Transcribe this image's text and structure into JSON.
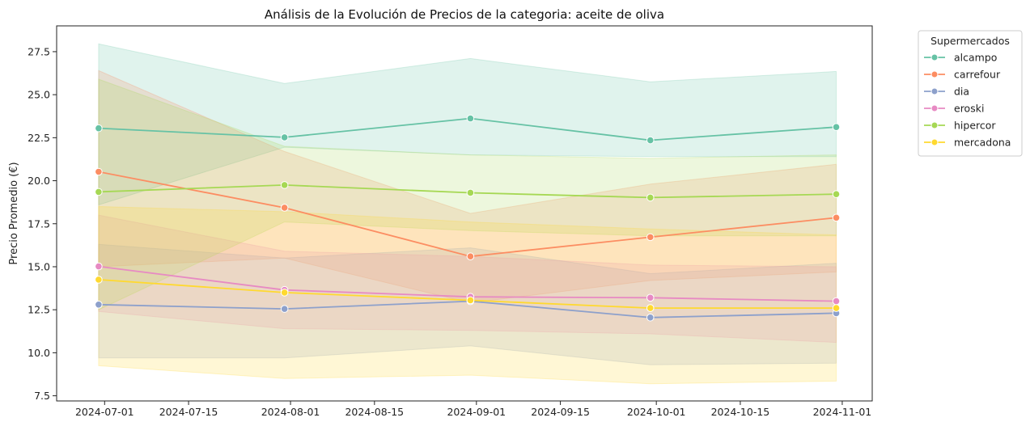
{
  "chart_data": {
    "type": "line",
    "title": "Análisis de la Evolución de Precios de la categoria: aceite de oliva",
    "xlabel": "",
    "ylabel": "Precio Promedio (€)",
    "x": [
      "2024-06-30",
      "2024-07-31",
      "2024-08-31",
      "2024-09-30",
      "2024-10-31"
    ],
    "xlim": [
      "2024-06-23",
      "2024-11-06"
    ],
    "ylim": [
      7.2,
      29.0
    ],
    "x_ticks": [
      "2024-07-01",
      "2024-07-15",
      "2024-08-01",
      "2024-08-15",
      "2024-09-01",
      "2024-09-15",
      "2024-10-01",
      "2024-10-15",
      "2024-11-01"
    ],
    "y_ticks": [
      "7.5",
      "10.0",
      "12.5",
      "15.0",
      "17.5",
      "20.0",
      "22.5",
      "25.0",
      "27.5"
    ],
    "grid": false,
    "legend": {
      "title": "Supermercados",
      "placement": "outside-right-top"
    },
    "series": [
      {
        "name": "alcampo",
        "color": "#66c2a5",
        "values": [
          23.05,
          22.52,
          23.62,
          22.35,
          23.12
        ],
        "lower": [
          18.6,
          21.95,
          21.5,
          21.4,
          21.4
        ],
        "upper": [
          27.95,
          25.65,
          27.1,
          25.75,
          26.35
        ]
      },
      {
        "name": "carrefour",
        "color": "#fc8d62",
        "values": [
          20.52,
          18.43,
          15.6,
          16.72,
          17.85
        ],
        "lower": [
          15.0,
          15.5,
          12.9,
          14.2,
          14.7
        ],
        "upper": [
          26.4,
          21.7,
          18.1,
          19.8,
          20.95
        ]
      },
      {
        "name": "dia",
        "color": "#8da0cb",
        "values": [
          12.8,
          12.55,
          13.0,
          12.05,
          12.3
        ],
        "lower": [
          9.7,
          9.7,
          10.4,
          9.3,
          9.4
        ],
        "upper": [
          16.3,
          15.5,
          16.1,
          14.6,
          15.2
        ]
      },
      {
        "name": "eroski",
        "color": "#e78ac3",
        "values": [
          15.02,
          13.65,
          13.25,
          13.2,
          13.0
        ],
        "lower": [
          12.4,
          11.4,
          11.3,
          11.1,
          10.6
        ],
        "upper": [
          18.0,
          15.9,
          15.6,
          15.1,
          15.0
        ]
      },
      {
        "name": "hipercor",
        "color": "#a6d854",
        "values": [
          19.35,
          19.75,
          19.3,
          19.02,
          19.22
        ],
        "lower": [
          12.5,
          17.6,
          17.1,
          16.8,
          16.8
        ],
        "upper": [
          25.9,
          22.0,
          21.5,
          21.3,
          21.5
        ]
      },
      {
        "name": "mercadona",
        "color": "#ffd92f",
        "values": [
          14.25,
          13.5,
          13.05,
          12.6,
          12.6
        ],
        "lower": [
          9.25,
          8.5,
          8.7,
          8.2,
          8.35
        ],
        "upper": [
          18.5,
          18.2,
          17.6,
          17.2,
          16.85
        ]
      }
    ]
  }
}
